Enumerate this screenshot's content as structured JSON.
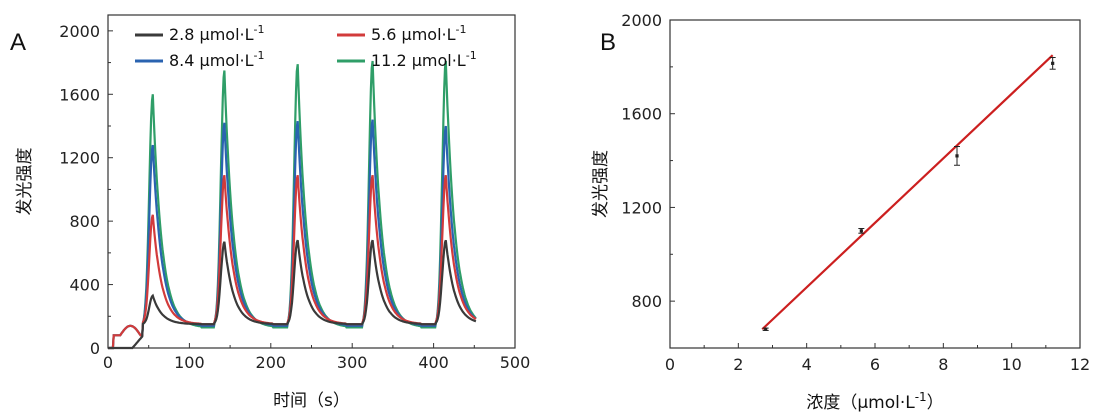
{
  "panels": {
    "a": "A",
    "b": "B"
  },
  "chart_data": [
    {
      "type": "line",
      "panel_label": "A",
      "xlabel": "时间（s）",
      "ylabel": "发光强度",
      "xlim": [
        0,
        500
      ],
      "ylim": [
        0,
        2100
      ],
      "x_ticks": [
        "0",
        "100",
        "200",
        "300",
        "400",
        "500"
      ],
      "y_ticks": [
        "0",
        "400",
        "800",
        "1200",
        "1600",
        "2000"
      ],
      "legend_position": "top",
      "peak_times": [
        55,
        143,
        233,
        325,
        415
      ],
      "series": [
        {
          "name": "2.8 μmol·L-1",
          "label_main": "2.8 μmol·L",
          "label_sup": "-1",
          "color": "#3a3a3a",
          "baseline": 150,
          "peaks": [
            330,
            670,
            680,
            680,
            680
          ]
        },
        {
          "name": "5.6 μmol·L-1",
          "label_main": "5.6 μmol·L",
          "label_sup": "-1",
          "color": "#d23b3b",
          "baseline": 150,
          "peaks": [
            840,
            1090,
            1090,
            1090,
            1090
          ]
        },
        {
          "name": "8.4 μmol·L-1",
          "label_main": "8.4 μmol·L",
          "label_sup": "-1",
          "color": "#2a63b0",
          "baseline": 140,
          "peaks": [
            1280,
            1420,
            1430,
            1440,
            1400
          ]
        },
        {
          "name": "11.2 μmol·L-1",
          "label_main": "11.2 μmol·L",
          "label_sup": "-1",
          "color": "#2f9e68",
          "baseline": 130,
          "peaks": [
            1600,
            1750,
            1790,
            1810,
            1810
          ]
        }
      ]
    },
    {
      "type": "scatter",
      "panel_label": "B",
      "xlabel_main": "浓度（μmol·L",
      "xlabel_sup": "-1",
      "xlabel_end": "）",
      "ylabel": "发光强度",
      "xlim": [
        0,
        12
      ],
      "ylim": [
        600,
        2000
      ],
      "x_ticks": [
        "0",
        "2",
        "4",
        "6",
        "8",
        "10",
        "12"
      ],
      "y_ticks": [
        "800",
        "1200",
        "1600",
        "2000"
      ],
      "points": [
        {
          "x": 2.8,
          "y": 680,
          "err": 5
        },
        {
          "x": 5.6,
          "y": 1100,
          "err": 10
        },
        {
          "x": 8.4,
          "y": 1420,
          "err": 40
        },
        {
          "x": 11.2,
          "y": 1815,
          "err": 25
        }
      ],
      "fit_line": {
        "x": [
          2.7,
          11.2
        ],
        "y": [
          680,
          1850
        ],
        "color": "#cc1f1f"
      }
    }
  ]
}
